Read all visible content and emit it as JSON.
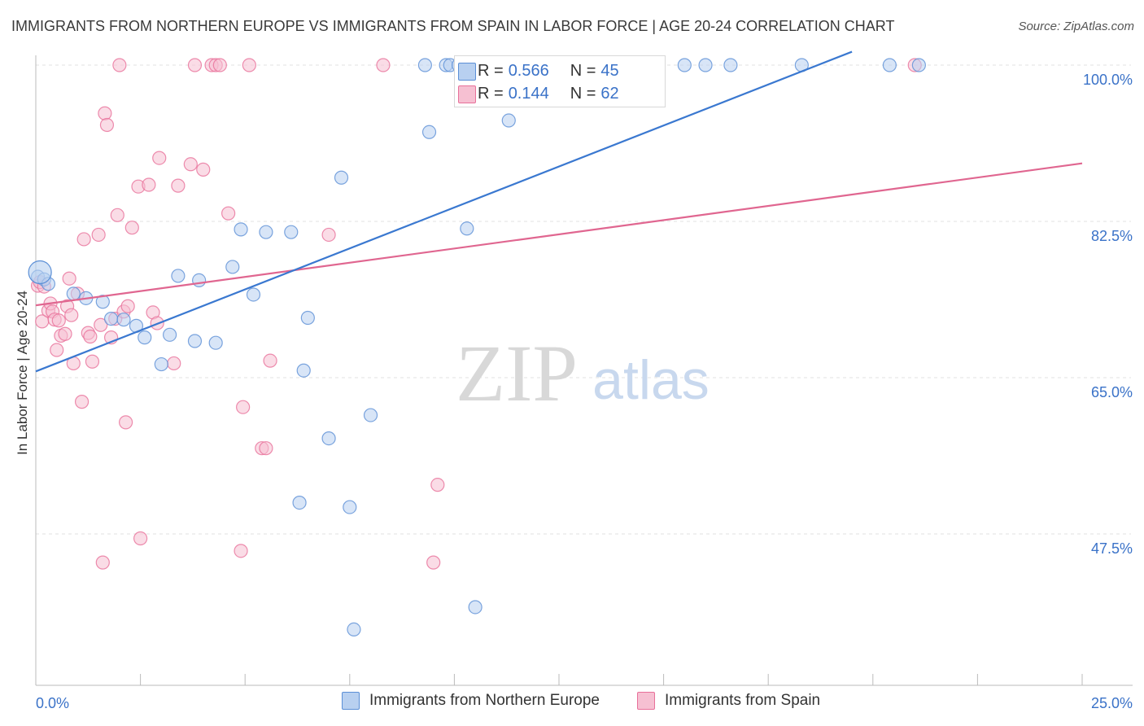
{
  "title": "IMMIGRANTS FROM NORTHERN EUROPE VS IMMIGRANTS FROM SPAIN IN LABOR FORCE | AGE 20-24 CORRELATION CHART",
  "source": "Source: ZipAtlas.com",
  "watermark": {
    "zip": "ZIP",
    "atlas": "atlas"
  },
  "legend_top": [
    {
      "r_label": "R =",
      "r_value": "0.566",
      "n_label": "N =",
      "n_value": "45"
    },
    {
      "r_label": "R =",
      "r_value": "0.144",
      "n_label": "N =",
      "n_value": "62"
    }
  ],
  "legend_bottom": [
    "Immigrants from Northern Europe",
    "Immigrants from Spain"
  ],
  "chart_data": {
    "type": "scatter",
    "title": "IMMIGRANTS FROM NORTHERN EUROPE VS IMMIGRANTS FROM SPAIN IN LABOR FORCE | AGE 20-24 CORRELATION CHART",
    "ylabel": "In Labor Force | Age 20-24",
    "xlabel": "",
    "xlim": [
      0,
      25
    ],
    "ylim": [
      30,
      100
    ],
    "x_tick_labels": [
      "0.0%",
      "25.0%"
    ],
    "y_ticks": [
      47.5,
      65.0,
      82.5,
      100.0
    ],
    "y_tick_labels": [
      "47.5%",
      "65.0%",
      "82.5%",
      "100.0%"
    ],
    "grid": "horizontal dashed",
    "legend_position": "top-center",
    "colors": {
      "blue": "#5b8fd6",
      "blue_fill": "#b8d0f0",
      "pink": "#e8709a",
      "pink_fill": "#f6c0d2",
      "axis_text": "#3a72c8"
    },
    "series": [
      {
        "name": "Immigrants from Northern Europe",
        "color": "#3a78d0",
        "r": 0.566,
        "n": 45,
        "trend": [
          [
            0,
            65.7
          ],
          [
            19.5,
            101.5
          ]
        ],
        "points": [
          [
            0.05,
            76.3
          ],
          [
            0.2,
            76.0
          ],
          [
            0.3,
            75.5
          ],
          [
            0.9,
            74.4
          ],
          [
            1.2,
            73.9
          ],
          [
            1.6,
            73.5
          ],
          [
            1.8,
            71.6
          ],
          [
            2.1,
            71.5
          ],
          [
            2.4,
            70.8
          ],
          [
            2.6,
            69.5
          ],
          [
            3.0,
            66.5
          ],
          [
            3.2,
            69.8
          ],
          [
            3.4,
            76.4
          ],
          [
            3.8,
            69.1
          ],
          [
            3.9,
            75.9
          ],
          [
            4.3,
            68.9
          ],
          [
            4.7,
            77.4
          ],
          [
            4.9,
            81.6
          ],
          [
            5.2,
            74.3
          ],
          [
            5.5,
            81.3
          ],
          [
            6.1,
            81.3
          ],
          [
            6.3,
            51.0
          ],
          [
            6.4,
            65.8
          ],
          [
            6.5,
            71.7
          ],
          [
            7.0,
            58.2
          ],
          [
            7.3,
            87.4
          ],
          [
            7.5,
            50.5
          ],
          [
            7.6,
            36.8
          ],
          [
            8.0,
            60.8
          ],
          [
            9.3,
            100.0
          ],
          [
            9.4,
            92.5
          ],
          [
            9.8,
            100.0
          ],
          [
            9.9,
            100.0
          ],
          [
            10.1,
            100.0
          ],
          [
            10.3,
            81.7
          ],
          [
            10.5,
            39.3
          ],
          [
            11.0,
            100.0
          ],
          [
            11.3,
            93.8
          ],
          [
            13.2,
            100.0
          ],
          [
            15.5,
            100.0
          ],
          [
            16.0,
            100.0
          ],
          [
            16.6,
            100.0
          ],
          [
            18.3,
            100.0
          ],
          [
            20.4,
            100.0
          ],
          [
            21.1,
            100.0
          ]
        ],
        "large_points": [
          [
            0.1,
            76.8
          ]
        ]
      },
      {
        "name": "Immigrants from Spain",
        "color": "#e06690",
        "r": 0.144,
        "n": 62,
        "trend": [
          [
            0,
            73.1
          ],
          [
            25,
            89.0
          ]
        ],
        "points": [
          [
            0.05,
            75.3
          ],
          [
            0.1,
            75.7
          ],
          [
            0.15,
            71.3
          ],
          [
            0.2,
            75.2
          ],
          [
            0.3,
            72.5
          ],
          [
            0.35,
            73.3
          ],
          [
            0.4,
            72.4
          ],
          [
            0.45,
            71.5
          ],
          [
            0.5,
            68.1
          ],
          [
            0.55,
            71.4
          ],
          [
            0.6,
            69.7
          ],
          [
            0.7,
            69.9
          ],
          [
            0.75,
            73.0
          ],
          [
            0.8,
            76.1
          ],
          [
            0.85,
            72.0
          ],
          [
            0.9,
            66.6
          ],
          [
            1.0,
            74.4
          ],
          [
            1.1,
            62.3
          ],
          [
            1.15,
            80.5
          ],
          [
            1.25,
            70.0
          ],
          [
            1.3,
            69.6
          ],
          [
            1.35,
            66.8
          ],
          [
            1.5,
            81.0
          ],
          [
            1.55,
            70.9
          ],
          [
            1.6,
            44.3
          ],
          [
            1.65,
            94.6
          ],
          [
            1.7,
            93.3
          ],
          [
            1.8,
            69.5
          ],
          [
            1.9,
            71.6
          ],
          [
            1.95,
            83.2
          ],
          [
            2.0,
            100.0
          ],
          [
            2.1,
            72.4
          ],
          [
            2.15,
            60.0
          ],
          [
            2.2,
            73.0
          ],
          [
            2.3,
            81.8
          ],
          [
            2.45,
            86.4
          ],
          [
            2.5,
            47.0
          ],
          [
            2.7,
            86.6
          ],
          [
            2.8,
            72.3
          ],
          [
            2.9,
            71.1
          ],
          [
            2.95,
            89.6
          ],
          [
            3.3,
            66.6
          ],
          [
            3.4,
            86.5
          ],
          [
            3.7,
            88.9
          ],
          [
            3.8,
            100.0
          ],
          [
            4.0,
            88.3
          ],
          [
            4.2,
            100.0
          ],
          [
            4.3,
            100.0
          ],
          [
            4.4,
            100.0
          ],
          [
            4.6,
            83.4
          ],
          [
            4.9,
            45.6
          ],
          [
            4.95,
            61.7
          ],
          [
            5.1,
            100.0
          ],
          [
            5.4,
            57.1
          ],
          [
            5.5,
            57.1
          ],
          [
            5.6,
            66.9
          ],
          [
            7.0,
            81.0
          ],
          [
            8.3,
            100.0
          ],
          [
            9.5,
            44.3
          ],
          [
            9.6,
            53.0
          ],
          [
            10.9,
            100.0
          ],
          [
            21.0,
            100.0
          ]
        ]
      }
    ]
  }
}
